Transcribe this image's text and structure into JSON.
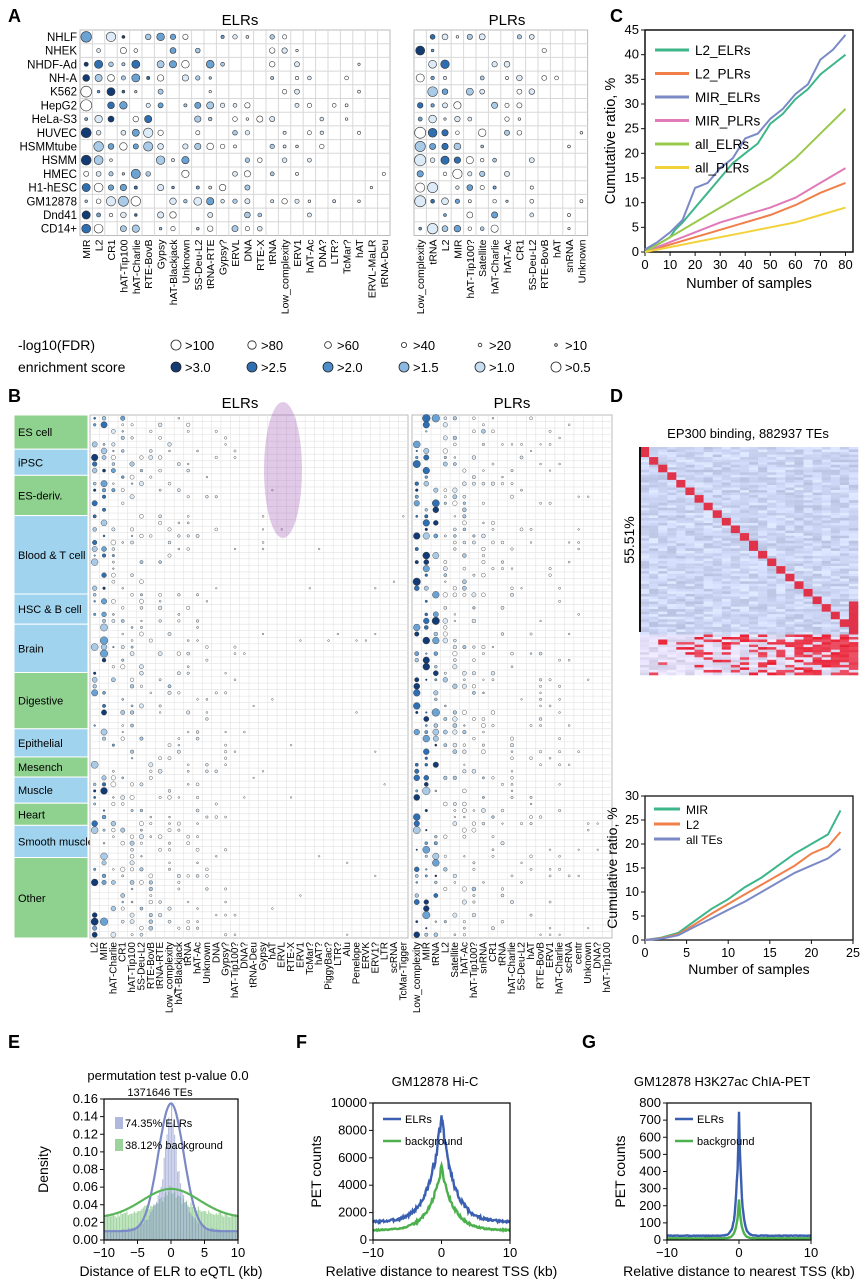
{
  "panelA": {
    "letter": "A",
    "elrs_title": "ELRs",
    "plrs_title": "PLRs",
    "rows": [
      "NHLF",
      "NHEK",
      "NHDF-Ad",
      "NH-A",
      "K562",
      "HepG2",
      "HeLa-S3",
      "HUVEC",
      "HSMMtube",
      "HSMM",
      "HMEC",
      "H1-hESC",
      "GM12878",
      "Dnd41",
      "CD14+"
    ],
    "elr_cols": [
      "MIR",
      "L2",
      "CR1",
      "hAT-Tip100",
      "hAT-Charlie",
      "RTE-BovB",
      "Gypsy",
      "hAT-Blackjack",
      "Unknown",
      "5S-Deu-L2",
      "tRNA-RTE",
      "Gypsy?",
      "ERVL",
      "DNA",
      "RTE-X",
      "tRNA",
      "Low_complexity",
      "ERV1",
      "hAT-Ac",
      "DNA?",
      "LTR?",
      "TcMar?",
      "hAT",
      "ERVL-MaLR",
      "tRNA-Deu"
    ],
    "plr_cols": [
      "Low_complexity",
      "tRNA",
      "L2",
      "MIR",
      "hAT-Tip100?",
      "Satellite",
      "hAT-Charlie",
      "hAT-Ac",
      "CR1",
      "5S-Deu-L2",
      "RTE-BovB",
      "hAT",
      "snRNA",
      "Unknown"
    ],
    "fdr_label": "-log10(FDR)",
    "fdr_levels": [
      ">100",
      ">80",
      ">60",
      ">40",
      ">20",
      ">10"
    ],
    "enrich_label": "enrichment score",
    "enrich_levels": [
      ">3.0",
      ">2.5",
      ">2.0",
      ">1.5",
      ">1.0",
      ">0.5"
    ]
  },
  "panelB": {
    "letter": "B",
    "elrs_title": "ELRs",
    "plrs_title": "PLRs",
    "groups": [
      {
        "label": "ES cell",
        "color": "#8fd18f"
      },
      {
        "label": "iPSC",
        "color": "#9fd3ee"
      },
      {
        "label": "ES-deriv.",
        "color": "#8fd18f"
      },
      {
        "label": "Blood & T cell",
        "color": "#9fd3ee"
      },
      {
        "label": "HSC & B cell",
        "color": "#9fd3ee"
      },
      {
        "label": "Brain",
        "color": "#9fd3ee"
      },
      {
        "label": "Digestive",
        "color": "#8fd18f"
      },
      {
        "label": "Epithelial",
        "color": "#9fd3ee"
      },
      {
        "label": "Mesench",
        "color": "#8fd18f"
      },
      {
        "label": "Muscle",
        "color": "#9fd3ee"
      },
      {
        "label": "Heart",
        "color": "#8fd18f"
      },
      {
        "label": "Smooth muscle",
        "color": "#9fd3ee"
      },
      {
        "label": "Other",
        "color": "#8fd18f"
      }
    ],
    "elr_cols": [
      "L2",
      "MIR",
      "hAT-Charlie",
      "CR1",
      "hAT-Tip100",
      "5S-Deu-L2",
      "RTE-BovB",
      "tRNA-RTE",
      "Low_complexity",
      "hAT-Blackjack",
      "tRNA",
      "hAT-Ac",
      "Unknown",
      "DNA",
      "Gypsy?",
      "hAT-Tip100?",
      "DNA?",
      "tRNA-Deu",
      "Gypsy",
      "hAT",
      "ERVL",
      "RTE-X",
      "ERV1",
      "TcMar?",
      "hAT?",
      "PiggyBac?",
      "LTR?",
      "Alu",
      "Penelope",
      "ERVK",
      "ERV1?",
      "LTR",
      "scRNA",
      "TcMar-Tigger"
    ],
    "plr_cols": [
      "Low_complexity",
      "MIR",
      "tRNA",
      "L2",
      "Satellite",
      "hAT-Ac",
      "hAT-Tip100?",
      "snRNA",
      "CR1",
      "tRNA",
      "hAT-Charlie",
      "5S-Deu-L2",
      "hAT",
      "RTE-BovB",
      "ERV1",
      "hAT-Charlie",
      "scRNA",
      "centr",
      "Unknown",
      "DNA?",
      "hAT-Tip100"
    ]
  },
  "panelC": {
    "letter": "C",
    "chart_data": {
      "type": "line",
      "title": "",
      "xlabel": "Number of samples",
      "ylabel": "Cumutative ratio, %",
      "xlim": [
        0,
        83
      ],
      "ylim": [
        0,
        45
      ],
      "xticks": [
        0,
        10,
        20,
        30,
        40,
        50,
        60,
        70,
        80
      ],
      "yticks": [
        0,
        5,
        10,
        15,
        20,
        25,
        30,
        35,
        40,
        45
      ],
      "series": [
        {
          "name": "L2_ELRs",
          "color": "#3cb68a",
          "x": [
            0,
            5,
            10,
            12,
            15,
            20,
            25,
            30,
            35,
            40,
            45,
            50,
            55,
            60,
            65,
            70,
            75,
            80
          ],
          "values": [
            0.5,
            1.5,
            3,
            4.5,
            6,
            9,
            12,
            15,
            18,
            20,
            22,
            26,
            28,
            31,
            33,
            36,
            38,
            40
          ]
        },
        {
          "name": "L2_PLRs",
          "color": "#f07f4a",
          "x": [
            0,
            10,
            20,
            30,
            40,
            50,
            60,
            70,
            80
          ],
          "values": [
            0,
            1.5,
            3,
            4.5,
            6,
            7.5,
            9.5,
            12,
            14
          ]
        },
        {
          "name": "MIR_ELRs",
          "color": "#7b8ac6",
          "x": [
            0,
            5,
            10,
            12,
            15,
            20,
            25,
            30,
            35,
            40,
            45,
            50,
            55,
            60,
            65,
            70,
            75,
            80
          ],
          "values": [
            0.5,
            2,
            4,
            5,
            6.5,
            13,
            14,
            17,
            19,
            23,
            24,
            27,
            29,
            32,
            34,
            39,
            41,
            44
          ]
        },
        {
          "name": "MIR_PLRs",
          "color": "#e07ab8",
          "x": [
            0,
            10,
            20,
            30,
            40,
            50,
            60,
            70,
            80
          ],
          "values": [
            0,
            2,
            4,
            6,
            7.5,
            9,
            11,
            14,
            17
          ]
        },
        {
          "name": "all_ELRs",
          "color": "#98c94a",
          "x": [
            0,
            10,
            20,
            30,
            40,
            50,
            60,
            70,
            80
          ],
          "values": [
            0,
            3,
            6,
            9,
            12,
            15,
            19,
            24,
            29
          ]
        },
        {
          "name": "all_PLRs",
          "color": "#f2d23a",
          "x": [
            0,
            10,
            20,
            30,
            40,
            50,
            60,
            70,
            80
          ],
          "values": [
            0,
            1,
            2,
            3,
            4,
            5,
            6,
            7.5,
            9
          ]
        }
      ]
    }
  },
  "panelD": {
    "letter": "D",
    "heatmap_title": "EP300 binding, 882937 TEs",
    "bracket_label": "55.51%",
    "chart_data": {
      "type": "line",
      "xlabel": "Number of samples",
      "ylabel": "Cumulative ratio, %",
      "xlim": [
        0,
        25
      ],
      "ylim": [
        0,
        30
      ],
      "xticks": [
        0,
        5,
        10,
        15,
        20,
        25
      ],
      "yticks": [
        0,
        5,
        10,
        15,
        20,
        25,
        30
      ],
      "series": [
        {
          "name": "MIR",
          "color": "#3cb68a",
          "x": [
            0,
            2,
            4,
            6,
            8,
            10,
            12,
            14,
            16,
            18,
            20,
            22,
            23.5
          ],
          "values": [
            0,
            0.5,
            1.5,
            4,
            6.5,
            8.5,
            11,
            13,
            15.5,
            18,
            20,
            22,
            27
          ]
        },
        {
          "name": "L2",
          "color": "#f07f4a",
          "x": [
            0,
            2,
            4,
            6,
            8,
            10,
            12,
            14,
            16,
            18,
            20,
            22,
            23.5
          ],
          "values": [
            0,
            0.4,
            1.2,
            3.3,
            5.5,
            7.5,
            9.5,
            11.5,
            13.5,
            15.5,
            18,
            19.5,
            22.5
          ]
        },
        {
          "name": "all TEs",
          "color": "#7b8ac6",
          "x": [
            0,
            2,
            4,
            6,
            8,
            10,
            12,
            14,
            16,
            18,
            20,
            22,
            23.5
          ],
          "values": [
            0,
            0.3,
            1,
            2.8,
            4.5,
            6.3,
            8,
            10,
            12,
            14,
            15.5,
            17,
            19
          ]
        }
      ]
    }
  },
  "panelE": {
    "letter": "E",
    "title": "permutation test  p-value 0.0",
    "count_label": "1371646 TEs",
    "chart_data": {
      "type": "histogram",
      "xlabel": "Distance of ELR to eQTL (kb)",
      "ylabel": "Density",
      "xlim": [
        -10,
        10
      ],
      "ylim": [
        0,
        0.16
      ],
      "xticks": [
        -10,
        -5,
        0,
        5,
        10
      ],
      "yticks": [
        0.0,
        0.02,
        0.04,
        0.06,
        0.08,
        0.1,
        0.12,
        0.14,
        0.16
      ],
      "series": [
        {
          "name": "74.35% ELRs",
          "color": "#7b8ac6",
          "peak": 0.155,
          "width": 2.0,
          "floor": 0.01
        },
        {
          "name": "38.12% background",
          "color": "#5ab45a",
          "peak": 0.058,
          "width": 4.5,
          "floor": 0.025
        }
      ]
    }
  },
  "panelF": {
    "letter": "F",
    "title": "GM12878 Hi-C",
    "chart_data": {
      "type": "line",
      "xlabel": "Relative distance  to nearest TSS (kb)",
      "ylabel": "PET counts",
      "xlim": [
        -10,
        10
      ],
      "ylim": [
        0,
        10000
      ],
      "xticks": [
        -10,
        0,
        10
      ],
      "yticks": [
        0,
        2000,
        4000,
        6000,
        8000,
        10000
      ],
      "series": [
        {
          "name": "ELRs",
          "color": "#3a5fb0",
          "peak": 9000,
          "base": 1300,
          "width": 1.8
        },
        {
          "name": "background",
          "color": "#4cb04c",
          "peak": 5300,
          "base": 700,
          "width": 1.8
        }
      ]
    }
  },
  "panelG": {
    "letter": "G",
    "title": "GM12878 H3K27ac ChIA-PET",
    "chart_data": {
      "type": "line",
      "xlabel": "Relative distance  to nearest TSS (kb)",
      "ylabel": "PET counts",
      "xlim": [
        -10,
        10
      ],
      "ylim": [
        0,
        800
      ],
      "xticks": [
        -10,
        0,
        10
      ],
      "yticks": [
        0,
        100,
        200,
        300,
        400,
        500,
        600,
        700,
        800
      ],
      "series": [
        {
          "name": "ELRs",
          "color": "#3a5fb0",
          "peak": 740,
          "base": 25,
          "width": 0.35
        },
        {
          "name": "background",
          "color": "#4cb04c",
          "peak": 230,
          "base": 10,
          "width": 0.35
        }
      ]
    }
  }
}
